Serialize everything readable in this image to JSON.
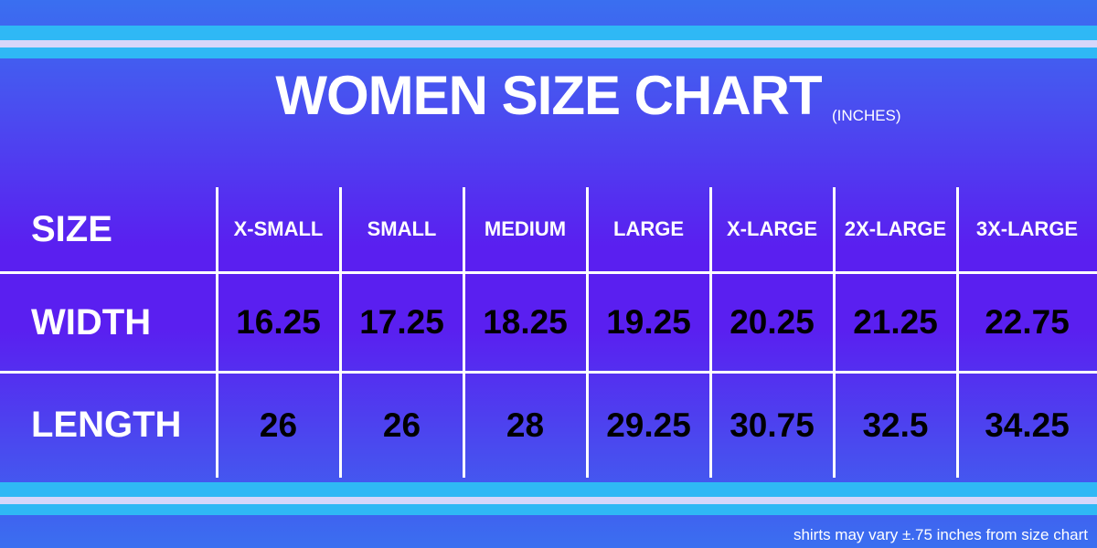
{
  "header": {
    "title": "WOMEN SIZE CHART",
    "unit": "(INCHES)"
  },
  "table": {
    "header": [
      "SIZE",
      "X-SMALL",
      "SMALL",
      "MEDIUM",
      "LARGE",
      "X-LARGE",
      "2X-LARGE",
      "3X-LARGE"
    ],
    "rows": [
      [
        "WIDTH",
        "16.25",
        "17.25",
        "18.25",
        "19.25",
        "20.25",
        "21.25",
        "22.75"
      ],
      [
        "LENGTH",
        "26",
        "26",
        "28",
        "29.25",
        "30.75",
        "32.5",
        "34.25"
      ]
    ]
  },
  "footer": "shirts may vary ±.75 inches from size chart"
}
